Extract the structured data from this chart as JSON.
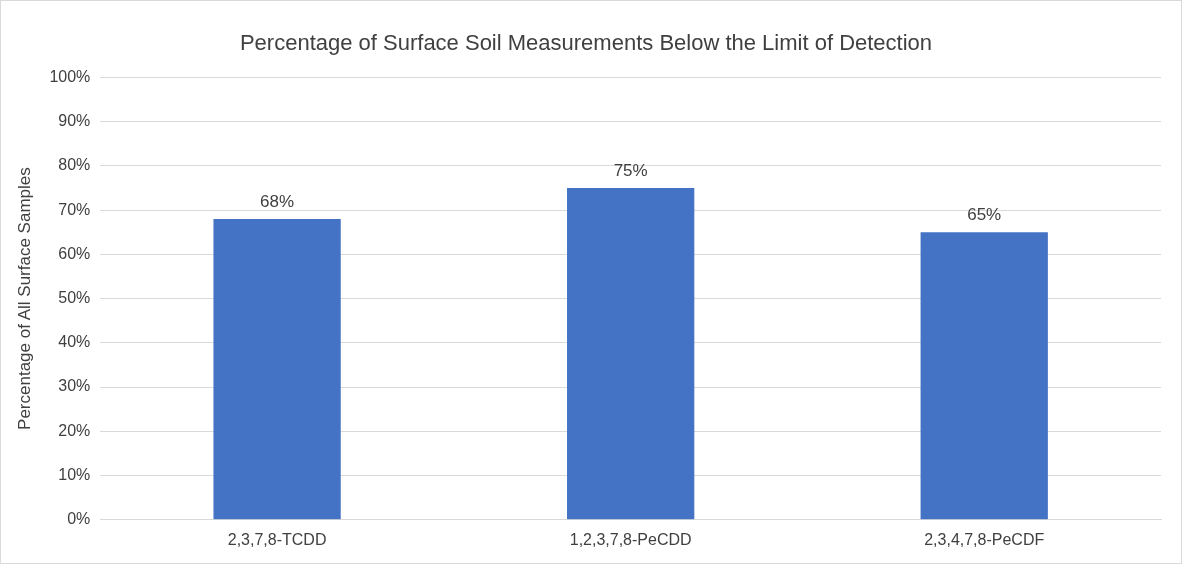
{
  "chart_data": {
    "type": "bar",
    "title": "Percentage of Surface Soil Measurements Below the Limit of Detection",
    "ylabel": "Percentage of All Surface Samples",
    "categories": [
      "2,3,7,8-TCDD",
      "1,2,3,7,8-PeCDD",
      "2,3,4,7,8-PeCDF"
    ],
    "values": [
      68,
      75,
      65
    ],
    "color": "#4472c4",
    "ylim": [
      0,
      100
    ],
    "yticks": [
      {
        "value": 0,
        "label": "0%"
      },
      {
        "value": 10,
        "label": "10%"
      },
      {
        "value": 20,
        "label": "20%"
      },
      {
        "value": 30,
        "label": "30%"
      },
      {
        "value": 40,
        "label": "40%"
      },
      {
        "value": 50,
        "label": "50%"
      },
      {
        "value": 60,
        "label": "60%"
      },
      {
        "value": 70,
        "label": "70%"
      },
      {
        "value": 80,
        "label": "80%"
      },
      {
        "value": 90,
        "label": "90%"
      },
      {
        "value": 100,
        "label": "100%"
      }
    ],
    "value_labels": [
      "68%",
      "75%",
      "65%"
    ],
    "grid": "y"
  }
}
